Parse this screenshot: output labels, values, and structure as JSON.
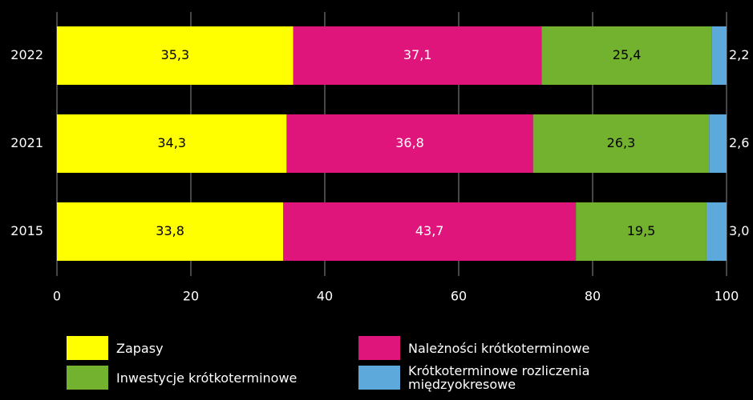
{
  "chart_data": {
    "type": "stacked-bar-horizontal",
    "categories": [
      "2022",
      "2021",
      "2015"
    ],
    "series": [
      {
        "name": "Zapasy",
        "color": "#ffff00",
        "values": [
          35.3,
          34.3,
          33.8
        ],
        "value_labels": [
          "35,3",
          "34,3",
          "33,8"
        ]
      },
      {
        "name": "Należności krótkoterminowe",
        "color": "#e0157b",
        "values": [
          37.1,
          36.8,
          43.7
        ],
        "value_labels": [
          "37,1",
          "36,8",
          "43,7"
        ]
      },
      {
        "name": "Inwestycje krótkoterminowe",
        "color": "#72b22e",
        "values": [
          25.4,
          26.3,
          19.5
        ],
        "value_labels": [
          "25,4",
          "26,3",
          "19,5"
        ]
      },
      {
        "name": "Krótkoterminowe rozliczenia międzyokresowe",
        "color": "#5ea9dc",
        "values": [
          2.2,
          2.6,
          3.0
        ],
        "value_labels": [
          "2,2",
          "2,6",
          "3,0"
        ]
      }
    ],
    "xlim": [
      0,
      100
    ],
    "xticks": [
      0,
      20,
      40,
      60,
      80,
      100
    ],
    "grid": true
  }
}
